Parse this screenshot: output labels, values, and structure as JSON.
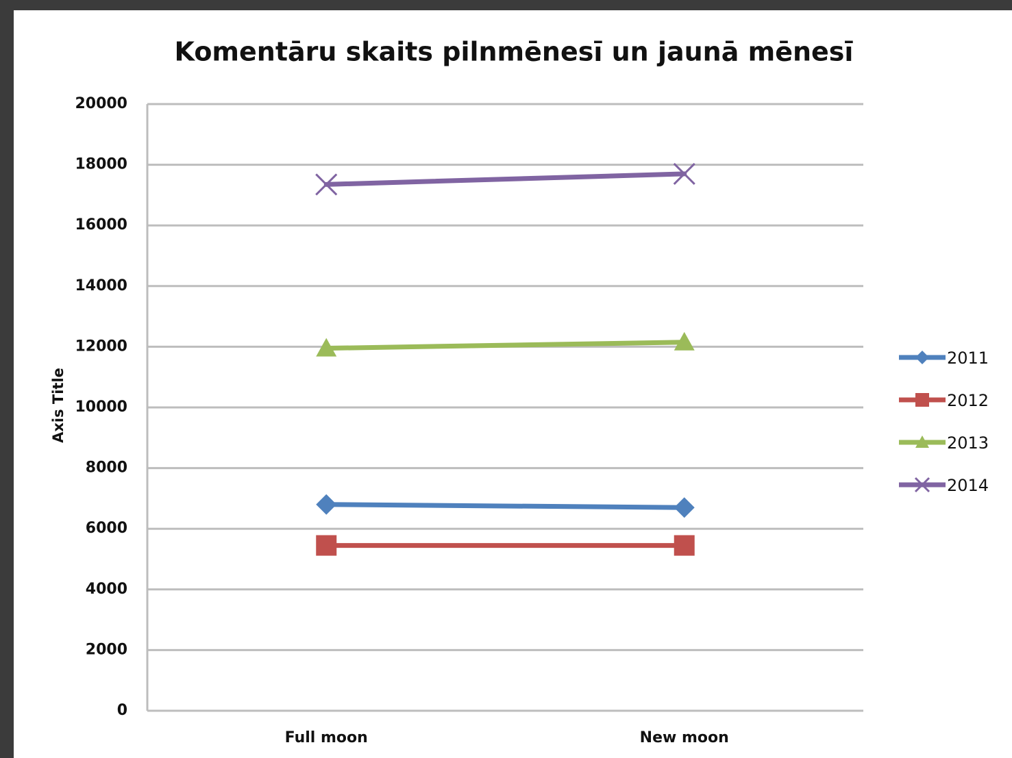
{
  "chart_data": {
    "type": "line",
    "title": "Komentāru skaits pilnmēnesī un jaunā mēnesī",
    "y_label": "Axis Title",
    "categories": [
      "Full moon",
      "New moon"
    ],
    "series": [
      {
        "name": "2011",
        "color": "#4f81bd",
        "marker": "diamond",
        "values": [
          6800,
          6700
        ]
      },
      {
        "name": "2012",
        "color": "#c0504d",
        "marker": "square",
        "values": [
          5450,
          5450
        ]
      },
      {
        "name": "2013",
        "color": "#9bbb59",
        "marker": "triangle",
        "values": [
          11950,
          12150
        ]
      },
      {
        "name": "2014",
        "color": "#8064a2",
        "marker": "x",
        "values": [
          17350,
          17700
        ]
      }
    ],
    "ylim": [
      0,
      20000
    ],
    "yticks": [
      0,
      2000,
      4000,
      6000,
      8000,
      10000,
      12000,
      14000,
      16000,
      18000,
      20000
    ],
    "grid": true,
    "legend": "right"
  }
}
